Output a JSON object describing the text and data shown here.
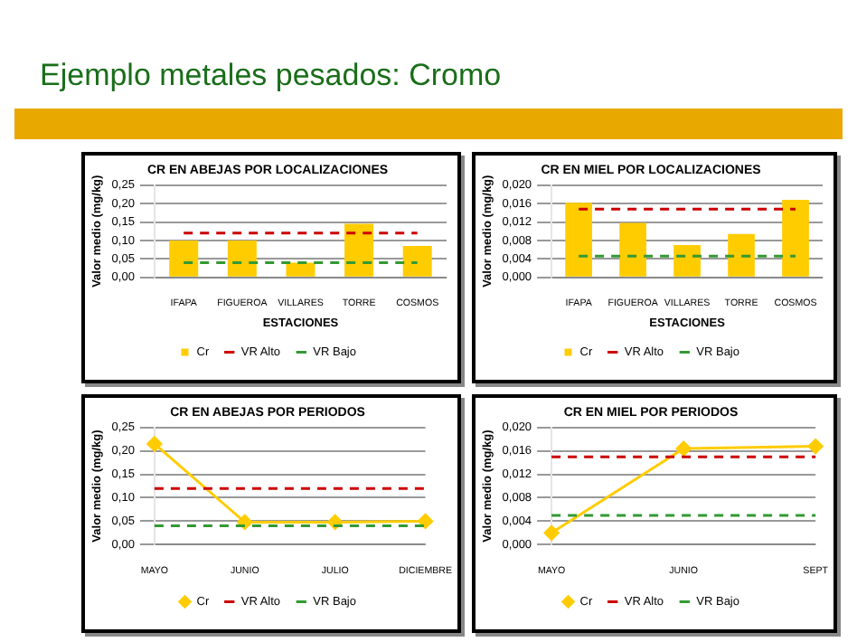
{
  "chart_data": [
    {
      "type": "bar",
      "title": "CR EN ABEJAS POR LOCALIZACIONES",
      "xlabel": "ESTACIONES",
      "ylabel": "Valor medio (mg/kg)",
      "annotations": [
        "Ejemplo metales pesados: Cromo"
      ],
      "categories": [
        "IFAPA",
        "FIGUEROA",
        "VILLARES",
        "TORRE",
        "COSMOS"
      ],
      "series": [
        {
          "name": "Cr",
          "color": "#ffcc00",
          "values": [
            0.1,
            0.1,
            0.04,
            0.145,
            0.085
          ]
        }
      ],
      "ref_lines": [
        {
          "axis": "y",
          "value": 0.12,
          "label": "VR Alto",
          "color": "#cc0000",
          "line_style": "dashed"
        },
        {
          "axis": "y",
          "value": 0.04,
          "label": "VR Bajo",
          "color": "#339933",
          "line_style": "dashed"
        }
      ],
      "ylim": [
        0,
        0.25
      ],
      "yticks": [
        {
          "value": 0,
          "label": "0,00"
        },
        {
          "value": 0.05,
          "label": "0,05"
        },
        {
          "value": 0.1,
          "label": "0,10"
        },
        {
          "value": 0.15,
          "label": "0,15"
        },
        {
          "value": 0.2,
          "label": "0,20"
        },
        {
          "value": 0.25,
          "label": "0,25"
        }
      ],
      "grid": "y",
      "legend": "bottom"
    },
    {
      "type": "bar",
      "title": "CR EN MIEL POR LOCALIZACIONES",
      "xlabel": "ESTACIONES",
      "ylabel": "Valor medio (mg/kg)",
      "categories": [
        "IFAPA",
        "FIGUEROA",
        "VILLARES",
        "TORRE",
        "COSMOS"
      ],
      "series": [
        {
          "name": "Cr",
          "color": "#ffcc00",
          "values": [
            0.0162,
            0.0118,
            0.007,
            0.0094,
            0.0168
          ]
        }
      ],
      "ref_lines": [
        {
          "axis": "y",
          "value": 0.0148,
          "label": "VR Alto",
          "color": "#cc0000",
          "line_style": "dashed"
        },
        {
          "axis": "y",
          "value": 0.0046,
          "label": "VR Bajo",
          "color": "#339933",
          "line_style": "dashed"
        }
      ],
      "ylim": [
        0,
        0.02
      ],
      "yticks": [
        {
          "value": 0,
          "label": "0,000"
        },
        {
          "value": 0.004,
          "label": "0,004"
        },
        {
          "value": 0.008,
          "label": "0,008"
        },
        {
          "value": 0.012,
          "label": "0,012"
        },
        {
          "value": 0.016,
          "label": "0,016"
        },
        {
          "value": 0.02,
          "label": "0,020"
        }
      ],
      "grid": "y",
      "legend": "bottom"
    },
    {
      "type": "line",
      "title": "CR EN ABEJAS POR PERIODOS",
      "ylabel": "Valor medio (mg/kg)",
      "categories": [
        "MAYO",
        "JUNIO",
        "JULIO",
        "DICIEMBRE"
      ],
      "series": [
        {
          "name": "Cr",
          "color": "#ffcc00",
          "values": [
            0.215,
            0.048,
            0.048,
            0.05
          ]
        }
      ],
      "ref_lines": [
        {
          "axis": "y",
          "value": 0.12,
          "label": "VR Alto",
          "color": "#cc0000",
          "line_style": "dashed"
        },
        {
          "axis": "y",
          "value": 0.04,
          "label": "VR Bajo",
          "color": "#339933",
          "line_style": "dashed"
        }
      ],
      "ylim": [
        0,
        0.25
      ],
      "yticks": [
        {
          "value": 0,
          "label": "0,00"
        },
        {
          "value": 0.05,
          "label": "0,05"
        },
        {
          "value": 0.1,
          "label": "0,10"
        },
        {
          "value": 0.15,
          "label": "0,15"
        },
        {
          "value": 0.2,
          "label": "0,20"
        },
        {
          "value": 0.25,
          "label": "0,25"
        }
      ],
      "grid": "y",
      "legend": "bottom",
      "marker": "diamond"
    },
    {
      "type": "line",
      "title": "CR EN MIEL POR PERIODOS",
      "ylabel": "Valor medio (mg/kg)",
      "categories": [
        "MAYO",
        "JUNIO",
        "SEPT"
      ],
      "series": [
        {
          "name": "Cr",
          "color": "#ffcc00",
          "values": [
            0.002,
            0.0164,
            0.0168
          ]
        }
      ],
      "ref_lines": [
        {
          "axis": "y",
          "value": 0.015,
          "label": "VR Alto",
          "color": "#cc0000",
          "line_style": "dashed"
        },
        {
          "axis": "y",
          "value": 0.005,
          "label": "VR Bajo",
          "color": "#339933",
          "line_style": "dashed"
        }
      ],
      "ylim": [
        0,
        0.02
      ],
      "yticks": [
        {
          "value": 0,
          "label": "0,000"
        },
        {
          "value": 0.004,
          "label": "0,004"
        },
        {
          "value": 0.008,
          "label": "0,008"
        },
        {
          "value": 0.012,
          "label": "0,012"
        },
        {
          "value": 0.016,
          "label": "0,016"
        },
        {
          "value": 0.02,
          "label": "0,020"
        }
      ],
      "grid": "y",
      "legend": "bottom",
      "marker": "diamond"
    }
  ]
}
